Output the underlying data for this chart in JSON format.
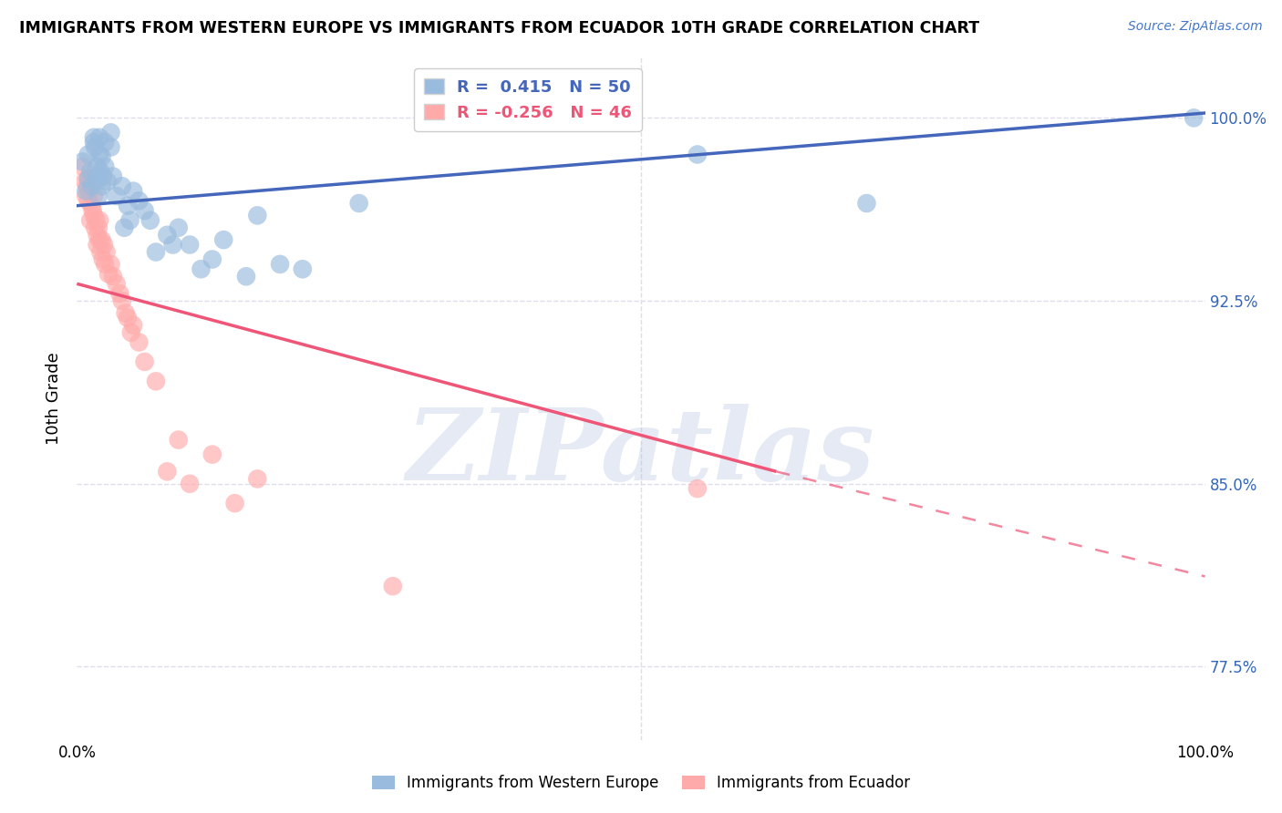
{
  "title": "IMMIGRANTS FROM WESTERN EUROPE VS IMMIGRANTS FROM ECUADOR 10TH GRADE CORRELATION CHART",
  "source": "Source: ZipAtlas.com",
  "ylabel": "10th Grade",
  "ytick_labels": [
    "77.5%",
    "85.0%",
    "92.5%",
    "100.0%"
  ],
  "ytick_values": [
    0.775,
    0.85,
    0.925,
    1.0
  ],
  "xmin": 0.0,
  "xmax": 1.0,
  "ymin": 0.745,
  "ymax": 1.025,
  "legend_blue_r": " 0.415",
  "legend_blue_n": "50",
  "legend_pink_r": "-0.256",
  "legend_pink_n": "46",
  "blue_label": "Immigrants from Western Europe",
  "pink_label": "Immigrants from Ecuador",
  "blue_color": "#99BBDD",
  "pink_color": "#FFAAAA",
  "blue_line_color": "#4466BB",
  "pink_line_color": "#EE5577",
  "watermark": "ZIPatlas",
  "watermark_color": "#AABBDD",
  "blue_x": [
    0.005,
    0.008,
    0.01,
    0.01,
    0.012,
    0.013,
    0.015,
    0.015,
    0.016,
    0.017,
    0.018,
    0.018,
    0.019,
    0.02,
    0.02,
    0.021,
    0.022,
    0.022,
    0.023,
    0.025,
    0.025,
    0.027,
    0.03,
    0.03,
    0.032,
    0.035,
    0.04,
    0.042,
    0.045,
    0.047,
    0.05,
    0.055,
    0.06,
    0.065,
    0.07,
    0.08,
    0.085,
    0.09,
    0.1,
    0.11,
    0.12,
    0.13,
    0.15,
    0.16,
    0.18,
    0.2,
    0.25,
    0.55,
    0.7,
    0.99
  ],
  "blue_y": [
    0.982,
    0.97,
    0.975,
    0.985,
    0.978,
    0.972,
    0.99,
    0.992,
    0.988,
    0.974,
    0.976,
    0.98,
    0.968,
    0.985,
    0.992,
    0.978,
    0.972,
    0.984,
    0.976,
    0.98,
    0.99,
    0.974,
    0.988,
    0.994,
    0.976,
    0.968,
    0.972,
    0.955,
    0.964,
    0.958,
    0.97,
    0.966,
    0.962,
    0.958,
    0.945,
    0.952,
    0.948,
    0.955,
    0.948,
    0.938,
    0.942,
    0.95,
    0.935,
    0.96,
    0.94,
    0.938,
    0.965,
    0.985,
    0.965,
    1.0
  ],
  "pink_x": [
    0.005,
    0.007,
    0.008,
    0.009,
    0.01,
    0.01,
    0.011,
    0.012,
    0.013,
    0.014,
    0.015,
    0.015,
    0.016,
    0.017,
    0.018,
    0.018,
    0.019,
    0.02,
    0.02,
    0.021,
    0.022,
    0.023,
    0.024,
    0.025,
    0.026,
    0.028,
    0.03,
    0.032,
    0.035,
    0.038,
    0.04,
    0.043,
    0.045,
    0.048,
    0.05,
    0.055,
    0.06,
    0.07,
    0.08,
    0.09,
    0.1,
    0.12,
    0.14,
    0.16,
    0.28,
    0.55
  ],
  "pink_y": [
    0.98,
    0.974,
    0.968,
    0.972,
    0.975,
    0.966,
    0.97,
    0.958,
    0.964,
    0.962,
    0.968,
    0.96,
    0.955,
    0.958,
    0.952,
    0.948,
    0.955,
    0.958,
    0.95,
    0.945,
    0.95,
    0.942,
    0.948,
    0.94,
    0.945,
    0.936,
    0.94,
    0.935,
    0.932,
    0.928,
    0.925,
    0.92,
    0.918,
    0.912,
    0.915,
    0.908,
    0.9,
    0.892,
    0.855,
    0.868,
    0.85,
    0.862,
    0.842,
    0.852,
    0.808,
    0.848
  ],
  "blue_trend_x_start": 0.0,
  "blue_trend_x_end": 1.0,
  "blue_trend_y_start": 0.964,
  "blue_trend_y_end": 1.002,
  "pink_trend_solid_x_start": 0.0,
  "pink_trend_solid_x_end": 0.62,
  "pink_trend_solid_y_start": 0.932,
  "pink_trend_solid_y_end": 0.855,
  "pink_trend_dashed_x_start": 0.62,
  "pink_trend_dashed_x_end": 1.0,
  "pink_trend_dashed_y_start": 0.855,
  "pink_trend_dashed_y_end": 0.812,
  "grid_color": "#DDDDEE",
  "xtick_positions": [
    0.0,
    0.25,
    0.5,
    0.75,
    1.0
  ],
  "xtick_labels": [
    "0.0%",
    "",
    "",
    "",
    "100.0%"
  ]
}
